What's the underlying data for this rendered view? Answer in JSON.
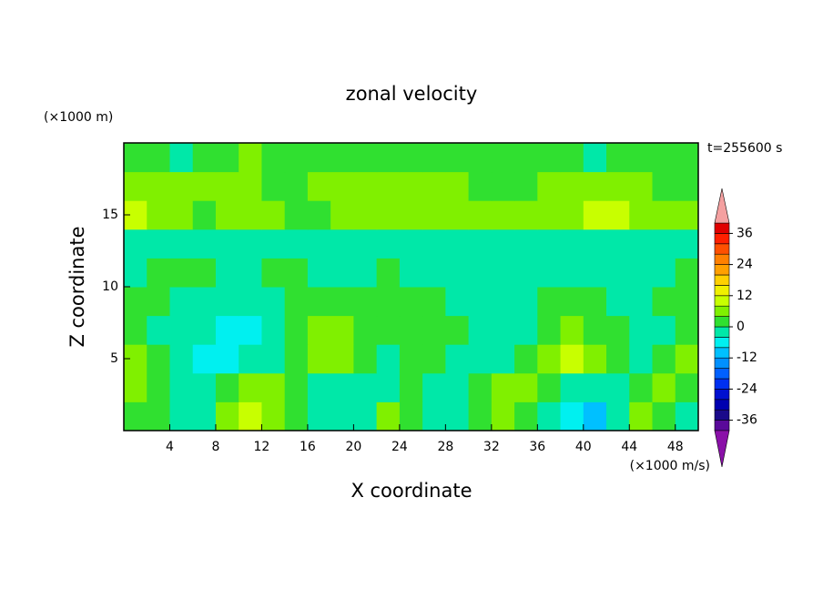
{
  "chart_data": {
    "type": "contour",
    "title": "zonal velocity",
    "y_unit": "(×1000 m)",
    "time_label": "t=255600 s",
    "x_label": "X coordinate",
    "y_label": "Z coordinate",
    "x_unit": "(×1000 m/s)",
    "xlim": [
      0,
      50
    ],
    "ylim": [
      0,
      20
    ],
    "xticks": [
      4,
      8,
      12,
      16,
      20,
      24,
      28,
      32,
      36,
      40,
      44,
      48
    ],
    "yticks": [
      5,
      10,
      15
    ],
    "x": [
      1,
      3,
      5,
      7,
      9,
      11,
      13,
      15,
      17,
      19,
      21,
      23,
      25,
      27,
      29,
      31,
      33,
      35,
      37,
      39,
      41,
      43,
      45,
      47,
      49
    ],
    "y": [
      1,
      3,
      5,
      7,
      9,
      11,
      13,
      15,
      17,
      19
    ],
    "z": [
      [
        2,
        2,
        -2,
        -2,
        6,
        10,
        6,
        2,
        -2,
        -2,
        -2,
        6,
        2,
        -2,
        -2,
        2,
        6,
        2,
        -2,
        -6,
        -10,
        -2,
        6,
        2,
        -2
      ],
      [
        6,
        2,
        -2,
        -2,
        2,
        6,
        6,
        2,
        -2,
        -2,
        -2,
        -2,
        2,
        -2,
        -2,
        2,
        6,
        6,
        2,
        -2,
        -2,
        -2,
        2,
        6,
        2
      ],
      [
        6,
        2,
        -2,
        -6,
        -6,
        -2,
        -2,
        2,
        6,
        6,
        2,
        -2,
        2,
        2,
        -2,
        -2,
        -2,
        2,
        6,
        10,
        6,
        2,
        -2,
        2,
        6
      ],
      [
        2,
        -2,
        -2,
        -2,
        -6,
        -6,
        -2,
        2,
        6,
        6,
        2,
        2,
        2,
        2,
        2,
        -2,
        -2,
        -2,
        2,
        6,
        2,
        2,
        -2,
        -2,
        2
      ],
      [
        2,
        2,
        -2,
        -2,
        -2,
        -2,
        -2,
        2,
        2,
        2,
        2,
        2,
        2,
        2,
        -2,
        -2,
        -2,
        -2,
        2,
        2,
        2,
        -2,
        -2,
        2,
        2
      ],
      [
        -2,
        2,
        2,
        2,
        -2,
        -2,
        2,
        2,
        -2,
        -2,
        -2,
        2,
        -2,
        -2,
        -2,
        -2,
        -2,
        -2,
        -2,
        -2,
        -2,
        -2,
        -2,
        -2,
        2
      ],
      [
        -2,
        -2,
        -2,
        -2,
        -2,
        -2,
        -2,
        -2,
        -2,
        -2,
        -2,
        -2,
        -2,
        -2,
        -2,
        -2,
        -2,
        -2,
        -2,
        -2,
        -2,
        -2,
        -2,
        -2,
        -2
      ],
      [
        10,
        6,
        6,
        2,
        6,
        6,
        6,
        2,
        2,
        6,
        6,
        6,
        6,
        6,
        6,
        6,
        6,
        6,
        6,
        6,
        10,
        10,
        6,
        6,
        6
      ],
      [
        6,
        6,
        6,
        6,
        6,
        6,
        2,
        2,
        6,
        6,
        6,
        6,
        6,
        6,
        6,
        2,
        2,
        2,
        6,
        6,
        6,
        6,
        6,
        2,
        2
      ],
      [
        2,
        2,
        -2,
        2,
        2,
        6,
        2,
        2,
        2,
        2,
        2,
        2,
        2,
        2,
        2,
        2,
        2,
        2,
        2,
        2,
        -2,
        2,
        2,
        2,
        2
      ]
    ],
    "levels": [
      -40,
      -36,
      -32,
      -28,
      -24,
      -20,
      -16,
      -12,
      -8,
      -4,
      0,
      4,
      8,
      12,
      16,
      20,
      24,
      28,
      32,
      36,
      40
    ],
    "colors": [
      "#5a0a9a",
      "#1a0a8a",
      "#0000b0",
      "#0010d0",
      "#0030f0",
      "#0060ff",
      "#0090ff",
      "#00c0ff",
      "#00f0f0",
      "#00e8a8",
      "#30e030",
      "#80f000",
      "#c8ff00",
      "#f0f000",
      "#ffd000",
      "#ffa000",
      "#ff8000",
      "#ff5000",
      "#ff2000",
      "#e00000"
    ],
    "over_color": "#f4a0a0",
    "under_color": "#8a10a8",
    "colorbar_ticks": [
      -36,
      -24,
      -12,
      0,
      12,
      24,
      36
    ]
  }
}
